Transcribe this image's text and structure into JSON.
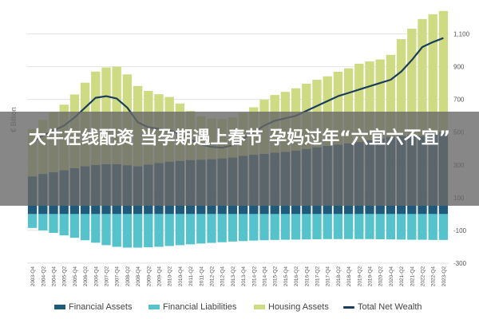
{
  "overlay": {
    "title": "大牛在线配资 当孕期遇上春节 孕妈过年“六宜六不宜”"
  },
  "colors": {
    "financial_assets": "#1f5a7a",
    "financial_liabilities": "#56c3cc",
    "housing_assets": "#cfdb83",
    "total_net_wealth": "#1b3d5c"
  },
  "chart_data": {
    "type": "area",
    "title": "",
    "ylabel": "€ Billion",
    "xlabel": "",
    "ylim": [
      -300,
      1200
    ],
    "yticks": [
      "-300",
      "-100",
      "100",
      "300",
      "500",
      "700",
      "900",
      "1,100"
    ],
    "grid": true,
    "legend_position": "bottom",
    "x": [
      "2003-Q4",
      "2004-Q2",
      "2004-Q4",
      "2005-Q2",
      "2005-Q4",
      "2006-Q2",
      "2006-Q4",
      "2007-Q2",
      "2007-Q4",
      "2008-Q2",
      "2008-Q4",
      "2009-Q2",
      "2009-Q4",
      "2010-Q2",
      "2010-Q4",
      "2011-Q2",
      "2011-Q4",
      "2012-Q2",
      "2012-Q4",
      "2013-Q2",
      "2013-Q4",
      "2014-Q2",
      "2014-Q4",
      "2015-Q2",
      "2015-Q4",
      "2016-Q2",
      "2016-Q4",
      "2017-Q2",
      "2017-Q4",
      "2018-Q2",
      "2018-Q4",
      "2019-Q2",
      "2019-Q4",
      "2020-Q2",
      "2020-Q4",
      "2021-Q2",
      "2021-Q4",
      "2022-Q2",
      "2022-Q4",
      "2023-Q2"
    ],
    "series": [
      {
        "name": "Financial Assets",
        "kind": "bar",
        "values": [
          230,
          245,
          255,
          268,
          280,
          292,
          300,
          305,
          305,
          298,
          292,
          302,
          312,
          320,
          325,
          330,
          332,
          335,
          340,
          345,
          355,
          362,
          368,
          375,
          380,
          388,
          398,
          408,
          416,
          424,
          432,
          440,
          450,
          462,
          472,
          478,
          482,
          476,
          490,
          500
        ]
      },
      {
        "name": "Financial Liabilities",
        "kind": "bar",
        "values": [
          -85,
          -100,
          -115,
          -130,
          -145,
          -160,
          -175,
          -190,
          -200,
          -205,
          -205,
          -203,
          -200,
          -195,
          -190,
          -185,
          -180,
          -176,
          -172,
          -168,
          -165,
          -162,
          -160,
          -158,
          -157,
          -156,
          -155,
          -154,
          -153,
          -153,
          -153,
          -153,
          -153,
          -154,
          -155,
          -156,
          -157,
          -157,
          -158,
          -158
        ]
      },
      {
        "name": "Housing Assets",
        "kind": "bar",
        "values": [
          290,
          330,
          365,
          400,
          450,
          510,
          570,
          590,
          595,
          555,
          490,
          450,
          420,
          395,
          350,
          300,
          265,
          248,
          240,
          245,
          262,
          290,
          330,
          352,
          366,
          380,
          398,
          412,
          425,
          445,
          458,
          478,
          482,
          482,
          500,
          590,
          650,
          715,
          730,
          740
        ]
      },
      {
        "name": "Total Net Wealth",
        "kind": "line",
        "values": [
          440,
          480,
          510,
          540,
          590,
          650,
          710,
          720,
          705,
          650,
          560,
          530,
          520,
          510,
          490,
          455,
          425,
          410,
          405,
          420,
          460,
          500,
          540,
          570,
          585,
          600,
          630,
          660,
          690,
          720,
          740,
          760,
          780,
          800,
          820,
          870,
          940,
          1020,
          1050,
          1075
        ]
      }
    ]
  },
  "legend": {
    "items": [
      {
        "label": "Financial Assets"
      },
      {
        "label": "Financial Liabilities"
      },
      {
        "label": "Housing Assets"
      },
      {
        "label": "Total Net Wealth"
      }
    ]
  }
}
